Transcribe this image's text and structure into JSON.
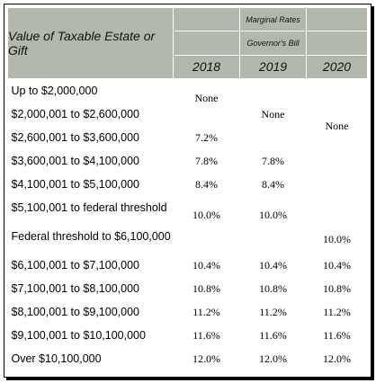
{
  "header": {
    "value_label": "Value of Taxable Estate or Gift",
    "marginal_rates": "Marginal Rates",
    "governors_bill": "Governor's Bill",
    "years": [
      "2018",
      "2019",
      "2020"
    ]
  },
  "rows": [
    {
      "label": "Up to $2,000,000"
    },
    {
      "label": "$2,000,001 to $2,600,000"
    },
    {
      "label": "$2,600,001 to $3,600,000",
      "r2018": "7.2%"
    },
    {
      "label": "$3,600,001 to $4,100,000",
      "r2018": "7.8%",
      "r2019": "7.8%"
    },
    {
      "label": "$4,100,001 to $5,100,000",
      "r2018": "8.4%",
      "r2019": "8.4%"
    },
    {
      "label": "$5,100,001 to federal threshold"
    },
    {
      "label": "Federal threshold to $6,100,000"
    },
    {
      "label": "$6,100,001 to $7,100,000",
      "r2018": "10.4%",
      "r2019": "10.4%",
      "r2020": "10.4%"
    },
    {
      "label": "$7,100,001 to $8,100,000",
      "r2018": "10.8%",
      "r2019": "10.8%",
      "r2020": "10.8%"
    },
    {
      "label": "$8,100,001 to $9,100,000",
      "r2018": "11.2%",
      "r2019": "11.2%",
      "r2020": "11.2%"
    },
    {
      "label": "$9,100,001 to $10,100,000",
      "r2018": "11.6%",
      "r2019": "11.6%",
      "r2020": "11.6%"
    },
    {
      "label": "Over $10,100,000",
      "r2018": "12.0%",
      "r2019": "12.0%",
      "r2020": "12.0%"
    }
  ],
  "merged": {
    "none_2018": "None",
    "none_2019": "None",
    "none_2020": "None",
    "ten_2018": "10.0%",
    "ten_2019": "10.0%",
    "ten_2020": "10.0%"
  }
}
